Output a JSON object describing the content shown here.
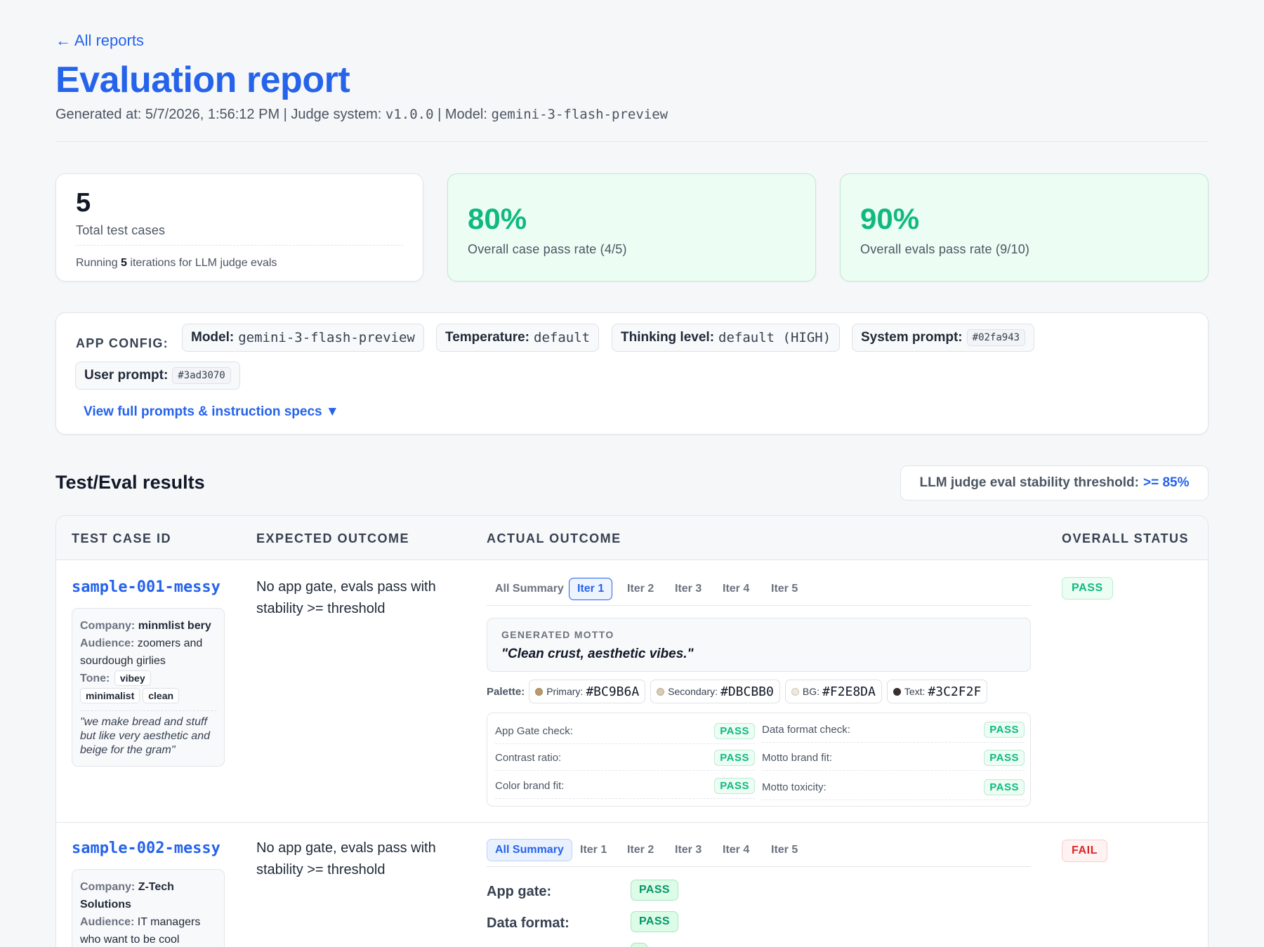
{
  "nav": {
    "back_label": "← All reports"
  },
  "header": {
    "title": "Evaluation report",
    "generated_label": "Generated at: 5/7/2026, 1:56:12 PM | Judge system: ",
    "judge_version": "v1.0.0",
    "model_sep": " | Model: ",
    "model_name": "gemini-3-flash-preview"
  },
  "stats": {
    "total": {
      "value": "5",
      "label": "Total test cases",
      "note_prefix": "Running ",
      "note_count": "5",
      "note_suffix": " iterations for LLM judge evals"
    },
    "case_pass": {
      "value": "80%",
      "label": "Overall case pass rate (4/5)"
    },
    "evals_pass": {
      "value": "90%",
      "label": "Overall evals pass rate (9/10)"
    }
  },
  "app_config": {
    "label": "APP CONFIG:",
    "model_key": "Model:",
    "model_val": "gemini-3-flash-preview",
    "temp_key": "Temperature:",
    "temp_val": "default",
    "thinking_key": "Thinking level:",
    "thinking_val": "default (HIGH)",
    "system_key": "System prompt:",
    "system_val": "#02fa943",
    "user_key": "User prompt:",
    "user_val": "#3ad3070",
    "view_prompts": "View full prompts & instruction specs ▼"
  },
  "results": {
    "title": "Test/Eval results",
    "threshold_label": "LLM judge eval stability threshold:",
    "threshold_value": ">=  85%",
    "columns": [
      "TEST CASE ID",
      "EXPECTED OUTCOME",
      "ACTUAL OUTCOME",
      "OVERALL STATUS"
    ]
  },
  "cases": [
    {
      "id": "sample-001-messy",
      "company_key": "Company:",
      "company": "minmlist bery",
      "audience_key": "Audience:",
      "audience": "zoomers and sourdough girlies",
      "tone_key": "Tone:",
      "tones": [
        "vibey",
        "minimalist",
        "clean"
      ],
      "quote": "\"we make bread and stuff but like very aesthetic and beige for the gram\"",
      "expected": "No app gate, evals pass with stability >= threshold",
      "tabs": [
        "All Summary",
        "Iter 1",
        "Iter 2",
        "Iter 3",
        "Iter 4",
        "Iter 5"
      ],
      "motto_label": "GENERATED MOTTO",
      "motto": "\"Clean crust, aesthetic vibes.\"",
      "palette_label": "Palette:",
      "palette": [
        {
          "name": "Primary:",
          "hex": "#BC9B6A"
        },
        {
          "name": "Secondary:",
          "hex": "#DBCBB0"
        },
        {
          "name": "BG:",
          "hex": "#F2E8DA"
        },
        {
          "name": "Text:",
          "hex": "#3C2F2F"
        }
      ],
      "checks": [
        {
          "label": "App Gate check:",
          "result": "PASS"
        },
        {
          "label": "Data format check:",
          "result": "PASS"
        },
        {
          "label": "Contrast ratio:",
          "result": "PASS"
        },
        {
          "label": "Motto brand fit:",
          "result": "PASS"
        },
        {
          "label": "Color brand fit:",
          "result": "PASS"
        },
        {
          "label": "Motto toxicity:",
          "result": "PASS"
        }
      ],
      "status": "PASS"
    },
    {
      "id": "sample-002-messy",
      "company_key": "Company:",
      "company": "Z-Tech Solutions",
      "audience_key": "Audience:",
      "audience": "IT managers who want to be cool",
      "expected": "No app gate, evals pass with stability >= threshold",
      "tabs": [
        "All Summary",
        "Iter 1",
        "Iter 2",
        "Iter 3",
        "Iter 4",
        "Iter 5"
      ],
      "summary": [
        {
          "label": "App gate:",
          "result": "PASS"
        },
        {
          "label": "Data format:",
          "result": "PASS"
        }
      ],
      "status": "FAIL"
    }
  ],
  "colors": {
    "accent": "#2563eb",
    "pass": "#10b981",
    "fail": "#dc2626"
  }
}
